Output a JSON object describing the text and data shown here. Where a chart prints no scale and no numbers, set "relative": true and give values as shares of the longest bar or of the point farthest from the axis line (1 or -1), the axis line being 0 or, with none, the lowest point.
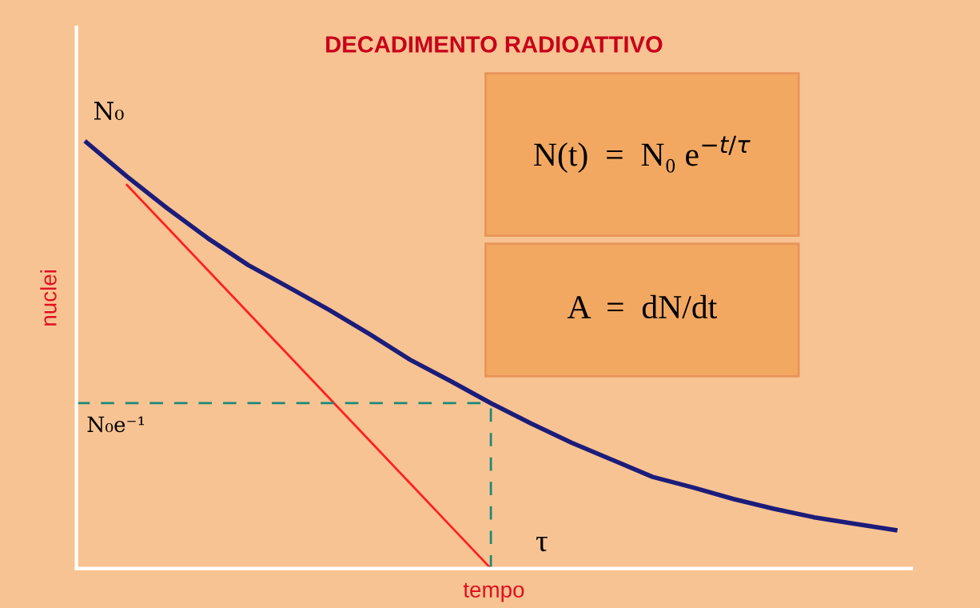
{
  "chart_data": {
    "type": "line",
    "title": "DECADIMENTO RADIOATTIVO",
    "xlabel": "tempo",
    "ylabel": "nuclei",
    "relative": true,
    "categories": [
      null,
      null,
      null,
      null,
      null,
      null,
      null,
      null,
      null,
      null,
      null,
      null,
      null,
      null,
      null,
      null,
      null,
      null,
      null,
      null,
      null
    ],
    "series": [
      {
        "color": "#1c1c7a",
        "values": [
          1.0,
          0.92,
          0.845,
          0.775,
          0.712,
          0.66,
          0.607,
          0.55,
          0.49,
          0.44,
          0.388,
          0.34,
          0.295,
          0.255,
          0.215,
          0.19,
          0.163,
          0.14,
          0.12,
          0.105,
          0.09
        ]
      },
      {
        "color": "#ff2020",
        "values": [
          null,
          0.9,
          0.8,
          0.7,
          0.6,
          0.5,
          0.4,
          0.3,
          0.2,
          0.1,
          0.0,
          null,
          null,
          null,
          null,
          null,
          null,
          null,
          null,
          null,
          null
        ]
      }
    ],
    "ref_lines": [
      {
        "axis": "y",
        "value": 0.388,
        "label": "N₀e⁻¹",
        "color": "#1a8a7a",
        "line_style": "dashed"
      }
    ],
    "annotations": [
      "N₀",
      "τ",
      "N(t)  =  N₀ e$^{−t/τ}$",
      "A  =  dN/dt"
    ],
    "grid": false,
    "legend": false,
    "marker": "none",
    "line_style": "solid"
  }
}
